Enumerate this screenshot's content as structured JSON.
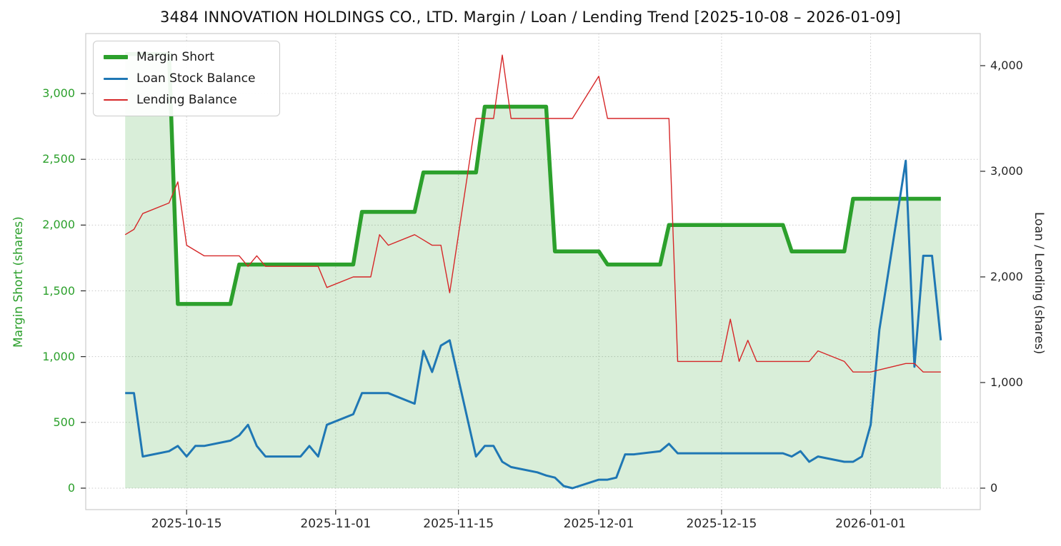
{
  "title": "3484 INNOVATION HOLDINGS CO., LTD. Margin / Loan / Lending Trend [2025-10-08 – 2026-01-09]",
  "colors": {
    "margin_short": "#2ca02c",
    "margin_fill": "rgba(44,160,44,0.18)",
    "loan": "#1f77b4",
    "lending": "#d62728",
    "grid": "#c9c9c9",
    "spine": "#cccccc",
    "tick_text": "#262626"
  },
  "chart_data": {
    "type": "line",
    "title": "3484 INNOVATION HOLDINGS CO., LTD. Margin / Loan / Lending Trend [2025-10-08 – 2026-01-09]",
    "xlabel": "",
    "ylabel_left": "Margin Short (shares)",
    "ylabel_right": "Loan / Lending (shares)",
    "grid": true,
    "legend_position": "upper left",
    "ylim_left": [
      -163,
      3456
    ],
    "ylim_right": [
      -203,
      4304
    ],
    "xlim_pad_days": 4.5,
    "x": [
      "2025-10-08",
      "2025-10-09",
      "2025-10-10",
      "2025-10-13",
      "2025-10-14",
      "2025-10-15",
      "2025-10-16",
      "2025-10-17",
      "2025-10-20",
      "2025-10-21",
      "2025-10-22",
      "2025-10-23",
      "2025-10-24",
      "2025-10-27",
      "2025-10-28",
      "2025-10-29",
      "2025-10-30",
      "2025-10-31",
      "2025-11-03",
      "2025-11-04",
      "2025-11-05",
      "2025-11-06",
      "2025-11-07",
      "2025-11-10",
      "2025-11-11",
      "2025-11-12",
      "2025-11-13",
      "2025-11-14",
      "2025-11-17",
      "2025-11-18",
      "2025-11-19",
      "2025-11-20",
      "2025-11-21",
      "2025-11-24",
      "2025-11-25",
      "2025-11-26",
      "2025-11-27",
      "2025-11-28",
      "2025-12-01",
      "2025-12-02",
      "2025-12-03",
      "2025-12-04",
      "2025-12-05",
      "2025-12-08",
      "2025-12-09",
      "2025-12-10",
      "2025-12-11",
      "2025-12-12",
      "2025-12-15",
      "2025-12-16",
      "2025-12-17",
      "2025-12-18",
      "2025-12-19",
      "2025-12-22",
      "2025-12-23",
      "2025-12-24",
      "2025-12-25",
      "2025-12-26",
      "2025-12-29",
      "2025-12-30",
      "2025-12-31",
      "2026-01-01",
      "2026-01-02",
      "2026-01-05",
      "2026-01-06",
      "2026-01-07",
      "2026-01-08",
      "2026-01-09"
    ],
    "series": [
      {
        "name": "Margin Short",
        "axis": "left",
        "color": "#2ca02c",
        "width": 5.5,
        "fill": true,
        "values": [
          3300,
          3300,
          3300,
          3300,
          1400,
          1400,
          1400,
          1400,
          1400,
          1700,
          1700,
          1700,
          1700,
          1700,
          1700,
          1700,
          1700,
          1700,
          1700,
          2100,
          2100,
          2100,
          2100,
          2100,
          2400,
          2400,
          2400,
          2400,
          2400,
          2900,
          2900,
          2900,
          2900,
          2900,
          2900,
          1800,
          1800,
          1800,
          1800,
          1700,
          1700,
          1700,
          1700,
          1700,
          2000,
          2000,
          2000,
          2000,
          2000,
          2000,
          2000,
          2000,
          2000,
          2000,
          1800,
          1800,
          1800,
          1800,
          1800,
          2200,
          2200,
          2200,
          2200,
          2200,
          2200,
          2200,
          2200,
          2200
        ]
      },
      {
        "name": "Loan Stock Balance",
        "axis": "right",
        "color": "#1f77b4",
        "width": 3,
        "fill": false,
        "values": [
          900,
          900,
          300,
          350,
          400,
          300,
          400,
          400,
          450,
          500,
          600,
          400,
          300,
          300,
          300,
          400,
          300,
          600,
          700,
          900,
          900,
          900,
          900,
          800,
          1300,
          1100,
          1350,
          1400,
          300,
          400,
          400,
          250,
          200,
          150,
          120,
          100,
          20,
          0,
          80,
          80,
          100,
          320,
          320,
          350,
          420,
          330,
          330,
          330,
          330,
          330,
          330,
          330,
          330,
          330,
          300,
          350,
          250,
          300,
          250,
          250,
          300,
          600,
          1500,
          3100,
          1150,
          2200,
          2200,
          1400
        ]
      },
      {
        "name": "Lending Balance",
        "axis": "right",
        "color": "#d62728",
        "width": 1.4,
        "fill": false,
        "values": [
          2400,
          2450,
          2600,
          2700,
          2900,
          2300,
          2250,
          2200,
          2200,
          2200,
          2100,
          2200,
          2100,
          2100,
          2100,
          2100,
          2100,
          1900,
          2000,
          2000,
          2000,
          2400,
          2300,
          2400,
          2350,
          2300,
          2300,
          1850,
          3500,
          3500,
          3500,
          4100,
          3500,
          3500,
          3500,
          3500,
          3500,
          3500,
          3900,
          3500,
          3500,
          3500,
          3500,
          3500,
          3500,
          1200,
          1200,
          1200,
          1200,
          1600,
          1200,
          1400,
          1200,
          1200,
          1200,
          1200,
          1200,
          1300,
          1200,
          1100,
          1100,
          1100,
          1120,
          1180,
          1180,
          1100,
          1100,
          1100
        ]
      }
    ],
    "left_ticks": [
      {
        "v": 0,
        "label": "0"
      },
      {
        "v": 500,
        "label": "500"
      },
      {
        "v": 1000,
        "label": "1,000"
      },
      {
        "v": 1500,
        "label": "1,500"
      },
      {
        "v": 2000,
        "label": "2,000"
      },
      {
        "v": 2500,
        "label": "2,500"
      },
      {
        "v": 3000,
        "label": "3,000"
      }
    ],
    "right_ticks": [
      {
        "v": 0,
        "label": "0"
      },
      {
        "v": 1000,
        "label": "1,000"
      },
      {
        "v": 2000,
        "label": "2,000"
      },
      {
        "v": 3000,
        "label": "3,000"
      },
      {
        "v": 4000,
        "label": "4,000"
      }
    ],
    "x_ticks": [
      {
        "date": "2025-10-15",
        "label": "2025-10-15"
      },
      {
        "date": "2025-11-01",
        "label": "2025-11-01"
      },
      {
        "date": "2025-11-15",
        "label": "2025-11-15"
      },
      {
        "date": "2025-12-01",
        "label": "2025-12-01"
      },
      {
        "date": "2025-12-15",
        "label": "2025-12-15"
      },
      {
        "date": "2026-01-01",
        "label": "2026-01-01"
      }
    ]
  }
}
